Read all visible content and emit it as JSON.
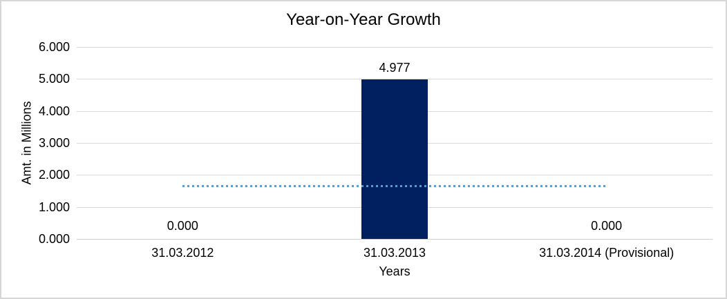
{
  "frame": {
    "background": "#FFFFFF",
    "border_color": "#D6D6D6"
  },
  "chart_data": {
    "type": "bar",
    "title": "Year-on-Year Growth",
    "xlabel": "Years",
    "ylabel": "Amt. in Millions",
    "categories": [
      "31.03.2012",
      "31.03.2013",
      "31.03.2014 (Provisional)"
    ],
    "series": [
      {
        "type": "bar",
        "values": [
          0.0,
          4.977,
          0.0
        ],
        "data_labels": [
          "0.000",
          "4.977",
          "0.000"
        ],
        "color": "#002060"
      }
    ],
    "trendline": {
      "value": 1.659,
      "style": "dotted",
      "color": "#5B9BD5",
      "span": "first-to-last-category"
    },
    "ylim": [
      0,
      6
    ],
    "y_ticks": [
      {
        "value": 6,
        "label": "6.000"
      },
      {
        "value": 5,
        "label": "5.000"
      },
      {
        "value": 4,
        "label": "4.000"
      },
      {
        "value": 3,
        "label": "3.000"
      },
      {
        "value": 2,
        "label": "2.000"
      },
      {
        "value": 1,
        "label": "1.000"
      },
      {
        "value": 0,
        "label": "0.000"
      }
    ],
    "grid": true,
    "legend": "none",
    "gridline_color": "#D9D9D9",
    "axis_line_color": "#D0D0D0",
    "text_color": "#000000"
  }
}
